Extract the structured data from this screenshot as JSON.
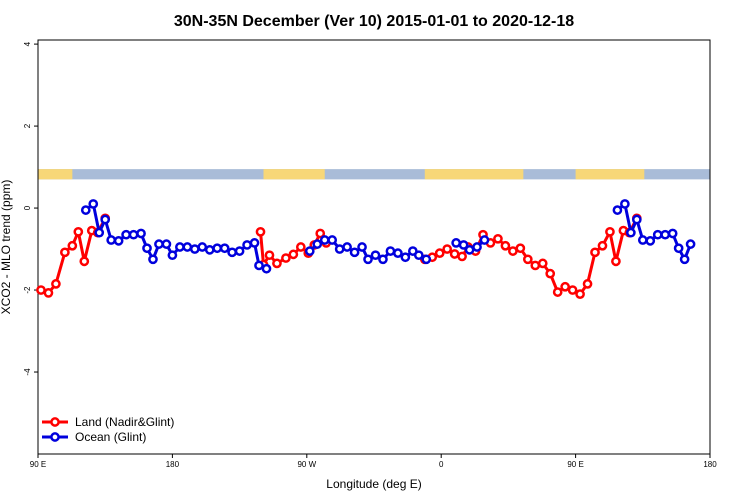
{
  "chart_data": {
    "type": "line",
    "title": "30N-35N December (Ver 10)   2015-01-01 to 2020-12-18",
    "xlabel": "Longitude (deg E)",
    "ylabel": "XCO2 - MLO trend (ppm)",
    "xlim": [
      90,
      540
    ],
    "ylim": [
      -6,
      4.1
    ],
    "x_ticks": [
      {
        "value": 90,
        "label": "90 E"
      },
      {
        "value": 180,
        "label": "180"
      },
      {
        "value": 270,
        "label": "90 W"
      },
      {
        "value": 360,
        "label": "0"
      },
      {
        "value": 450,
        "label": "90 E"
      },
      {
        "value": 540,
        "label": "180"
      }
    ],
    "y_ticks": [
      {
        "value": 4,
        "label": "4"
      },
      {
        "value": 2,
        "label": "2"
      },
      {
        "value": 0,
        "label": "0"
      },
      {
        "value": -2,
        "label": "-2"
      },
      {
        "value": -4,
        "label": "-4"
      }
    ],
    "grid": false,
    "legend_position": "bottom-left",
    "land_ocean_strip": {
      "y_range": [
        0.7,
        0.95
      ],
      "land_color": "#f7d778",
      "ocean_color": "#a9bcd8",
      "land_ranges": [
        [
          90,
          113
        ],
        [
          241,
          282
        ],
        [
          349,
          415
        ],
        [
          450,
          496
        ]
      ]
    },
    "series": [
      {
        "name": "Land (Nadir&Glint)",
        "color": "#ff0000",
        "points": [
          [
            92,
            -2.0
          ],
          [
            97,
            -2.07
          ],
          [
            102,
            -1.85
          ],
          [
            108,
            -1.08
          ],
          [
            113,
            -0.92
          ],
          [
            117,
            -0.58
          ],
          [
            121,
            -1.3
          ],
          [
            126,
            -0.55
          ],
          [
            130,
            -0.6
          ],
          [
            135,
            -0.25
          ],
          [
            239,
            -0.58
          ],
          [
            241,
            -1.38
          ],
          [
            245,
            -1.15
          ],
          [
            250,
            -1.35
          ],
          [
            256,
            -1.22
          ],
          [
            261,
            -1.13
          ],
          [
            266,
            -0.95
          ],
          [
            271,
            -1.1
          ],
          [
            275,
            -0.9
          ],
          [
            279,
            -0.62
          ],
          [
            283,
            -0.85
          ],
          [
            349,
            -1.25
          ],
          [
            354,
            -1.2
          ],
          [
            359,
            -1.1
          ],
          [
            364,
            -1.0
          ],
          [
            369,
            -1.12
          ],
          [
            374,
            -1.18
          ],
          [
            378,
            -0.95
          ],
          [
            383,
            -1.05
          ],
          [
            388,
            -0.65
          ],
          [
            393,
            -0.85
          ],
          [
            398,
            -0.75
          ],
          [
            403,
            -0.92
          ],
          [
            408,
            -1.05
          ],
          [
            413,
            -0.98
          ],
          [
            418,
            -1.25
          ],
          [
            423,
            -1.4
          ],
          [
            428,
            -1.35
          ],
          [
            433,
            -1.6
          ],
          [
            438,
            -2.05
          ],
          [
            443,
            -1.92
          ],
          [
            448,
            -2.0
          ],
          [
            453,
            -2.1
          ],
          [
            458,
            -1.85
          ],
          [
            463,
            -1.08
          ],
          [
            468,
            -0.92
          ],
          [
            473,
            -0.58
          ],
          [
            477,
            -1.3
          ],
          [
            482,
            -0.55
          ],
          [
            486,
            -0.6
          ],
          [
            491,
            -0.25
          ]
        ]
      },
      {
        "name": "Ocean (Glint)",
        "color": "#0000dd",
        "points": [
          [
            122,
            -0.05
          ],
          [
            127,
            0.1
          ],
          [
            131,
            -0.6
          ],
          [
            135,
            -0.28
          ],
          [
            139,
            -0.78
          ],
          [
            144,
            -0.8
          ],
          [
            149,
            -0.65
          ],
          [
            154,
            -0.65
          ],
          [
            159,
            -0.62
          ],
          [
            163,
            -0.98
          ],
          [
            167,
            -1.25
          ],
          [
            171,
            -0.88
          ],
          [
            176,
            -0.88
          ],
          [
            180,
            -1.15
          ],
          [
            185,
            -0.95
          ],
          [
            190,
            -0.95
          ],
          [
            195,
            -1.0
          ],
          [
            200,
            -0.95
          ],
          [
            205,
            -1.02
          ],
          [
            210,
            -0.98
          ],
          [
            215,
            -0.98
          ],
          [
            220,
            -1.08
          ],
          [
            225,
            -1.05
          ],
          [
            230,
            -0.9
          ],
          [
            235,
            -0.85
          ],
          [
            238,
            -1.4
          ],
          [
            243,
            -1.48
          ],
          [
            272,
            -1.05
          ],
          [
            277,
            -0.88
          ],
          [
            282,
            -0.78
          ],
          [
            287,
            -0.78
          ],
          [
            292,
            -1.0
          ],
          [
            297,
            -0.95
          ],
          [
            302,
            -1.08
          ],
          [
            307,
            -0.95
          ],
          [
            311,
            -1.25
          ],
          [
            316,
            -1.15
          ],
          [
            321,
            -1.25
          ],
          [
            326,
            -1.05
          ],
          [
            331,
            -1.1
          ],
          [
            336,
            -1.2
          ],
          [
            341,
            -1.05
          ],
          [
            345,
            -1.15
          ],
          [
            350,
            -1.25
          ],
          [
            370,
            -0.85
          ],
          [
            375,
            -0.9
          ],
          [
            379,
            -1.02
          ],
          [
            384,
            -0.95
          ],
          [
            389,
            -0.78
          ],
          [
            478,
            -0.05
          ],
          [
            483,
            0.1
          ],
          [
            487,
            -0.6
          ],
          [
            491,
            -0.28
          ],
          [
            495,
            -0.78
          ],
          [
            500,
            -0.8
          ],
          [
            505,
            -0.65
          ],
          [
            510,
            -0.65
          ],
          [
            515,
            -0.62
          ],
          [
            519,
            -0.98
          ],
          [
            523,
            -1.25
          ],
          [
            527,
            -0.88
          ]
        ]
      }
    ]
  }
}
